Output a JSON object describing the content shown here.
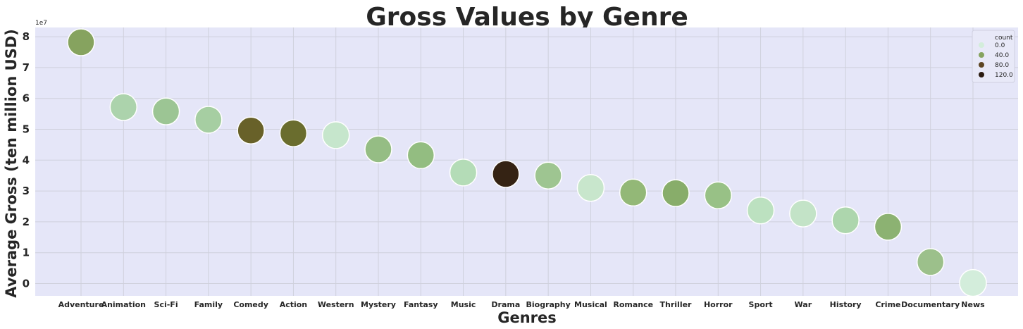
{
  "chart_data": {
    "type": "scatter",
    "title": "Gross Values by Genre",
    "xlabel": "Genres",
    "ylabel": "Average Gross (ten million USD)",
    "y_offset_label": "1e7",
    "ylim": [
      -0.4,
      8.3
    ],
    "yticks": [
      "0",
      "1",
      "2",
      "3",
      "4",
      "5",
      "6",
      "7",
      "8"
    ],
    "grid": true,
    "background_color": "#e5e6f8",
    "categories": [
      "Adventure",
      "Animation",
      "Sci-Fi",
      "Family",
      "Comedy",
      "Action",
      "Western",
      "Mystery",
      "Fantasy",
      "Music",
      "Drama",
      "Biography",
      "Musical",
      "Romance",
      "Thriller",
      "Horror",
      "Sport",
      "War",
      "History",
      "Crime",
      "Documentary",
      "News"
    ],
    "values": [
      7.82,
      5.72,
      5.58,
      5.31,
      4.96,
      4.87,
      4.81,
      4.35,
      4.16,
      3.6,
      3.55,
      3.5,
      3.1,
      2.95,
      2.93,
      2.86,
      2.37,
      2.27,
      2.05,
      1.84,
      0.7,
      0.02
    ],
    "colors": [
      "#86a35f",
      "#acd3ac",
      "#9cc594",
      "#a6cea2",
      "#686129",
      "#6a6d2e",
      "#c6e6cc",
      "#95bd84",
      "#93bd81",
      "#b4dcb7",
      "#352314",
      "#9ec591",
      "#c8e6cc",
      "#93b877",
      "#88ad6a",
      "#98c186",
      "#bce1c0",
      "#c3e3c7",
      "#add6ad",
      "#8cb272",
      "#9cc08b",
      "#d3eddb"
    ],
    "legend": {
      "title": "count",
      "placement": "top-right",
      "entries": [
        {
          "label": "0.0",
          "color": "#d3eddb"
        },
        {
          "label": "40.0",
          "color": "#86a35f"
        },
        {
          "label": "80.0",
          "color": "#5d4523"
        },
        {
          "label": "120.0",
          "color": "#2b1b10"
        }
      ]
    }
  }
}
